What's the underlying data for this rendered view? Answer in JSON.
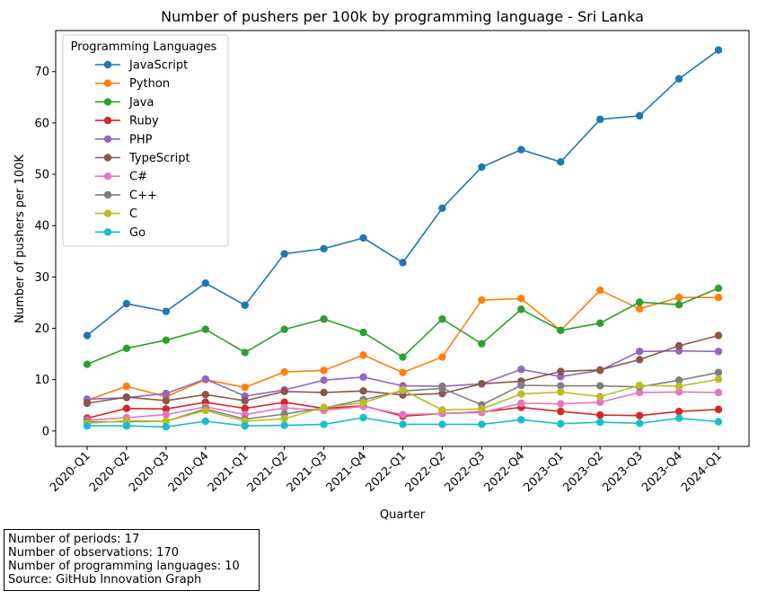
{
  "chart_data": {
    "type": "line",
    "title": "Number of pushers per 100k by programming language - Sri Lanka",
    "xlabel": "Quarter",
    "ylabel": "Number of pushers per 100K",
    "ylim": [
      -3,
      78
    ],
    "yticks": [
      0,
      10,
      20,
      30,
      40,
      50,
      60,
      70
    ],
    "grid": false,
    "legend_title": "Programming Languages",
    "legend_position": "top-left",
    "categories": [
      "2020-Q1",
      "2020-Q2",
      "2020-Q3",
      "2020-Q4",
      "2021-Q1",
      "2021-Q2",
      "2021-Q3",
      "2021-Q4",
      "2022-Q1",
      "2022-Q2",
      "2022-Q3",
      "2022-Q4",
      "2023-Q1",
      "2023-Q2",
      "2023-Q3",
      "2023-Q4",
      "2024-Q1"
    ],
    "series": [
      {
        "name": "JavaScript",
        "color": "#1f77b4",
        "values": [
          18.6,
          24.8,
          23.3,
          28.8,
          24.5,
          34.5,
          35.5,
          37.6,
          32.8,
          43.4,
          51.4,
          54.8,
          52.4,
          60.7,
          61.4,
          68.6,
          74.2
        ]
      },
      {
        "name": "Python",
        "color": "#ff7f0e",
        "values": [
          6.0,
          8.7,
          6.7,
          10.0,
          8.5,
          11.5,
          11.8,
          14.8,
          11.4,
          14.4,
          25.5,
          25.8,
          19.6,
          27.4,
          23.8,
          26.0,
          26.0
        ]
      },
      {
        "name": "Java",
        "color": "#2ca02c",
        "values": [
          13.0,
          16.1,
          17.7,
          19.8,
          15.3,
          19.8,
          21.8,
          19.2,
          14.4,
          21.8,
          17.0,
          23.7,
          19.6,
          21.0,
          25.1,
          24.6,
          27.8
        ]
      },
      {
        "name": "Ruby",
        "color": "#d62728",
        "values": [
          2.5,
          4.4,
          4.3,
          5.6,
          4.4,
          5.6,
          4.4,
          4.9,
          2.9,
          3.4,
          3.7,
          4.6,
          3.8,
          3.1,
          3.0,
          3.8,
          4.2
        ]
      },
      {
        "name": "PHP",
        "color": "#9467bd",
        "values": [
          6.2,
          6.5,
          7.3,
          10.1,
          6.8,
          8.0,
          9.9,
          10.5,
          8.8,
          8.7,
          9.2,
          12.0,
          10.6,
          11.8,
          15.5,
          15.6,
          15.5
        ]
      },
      {
        "name": "TypeScript",
        "color": "#8c564b",
        "values": [
          5.4,
          6.6,
          5.9,
          7.1,
          5.9,
          7.7,
          7.5,
          7.8,
          7.0,
          7.3,
          9.2,
          9.7,
          11.6,
          11.9,
          13.9,
          16.6,
          18.6
        ]
      },
      {
        "name": "C#",
        "color": "#e377c2",
        "values": [
          2.1,
          2.6,
          3.2,
          4.7,
          3.2,
          4.5,
          4.0,
          4.8,
          3.2,
          3.4,
          3.6,
          5.4,
          5.3,
          5.6,
          7.5,
          7.6,
          7.5
        ]
      },
      {
        "name": "C++",
        "color": "#7f7f7f",
        "values": [
          1.8,
          1.8,
          1.9,
          4.3,
          2.3,
          3.3,
          4.5,
          6.1,
          7.8,
          8.3,
          5.1,
          8.9,
          8.8,
          8.8,
          8.6,
          9.9,
          11.4
        ]
      },
      {
        "name": "C",
        "color": "#bcbd22",
        "values": [
          1.5,
          2.0,
          1.9,
          4.0,
          1.9,
          2.4,
          4.6,
          5.5,
          8.0,
          4.1,
          4.3,
          7.2,
          7.6,
          6.7,
          8.9,
          8.7,
          10.1
        ]
      },
      {
        "name": "Go",
        "color": "#17becf",
        "values": [
          1.0,
          1.0,
          0.8,
          1.9,
          1.0,
          1.1,
          1.3,
          2.6,
          1.3,
          1.3,
          1.3,
          2.2,
          1.4,
          1.7,
          1.5,
          2.5,
          1.8
        ]
      }
    ]
  },
  "notes": {
    "periods": "Number of periods: 17",
    "observations": "Number of observations: 170",
    "languages": "Number of programming languages: 10",
    "source": "Source: GitHub Innovation Graph"
  }
}
